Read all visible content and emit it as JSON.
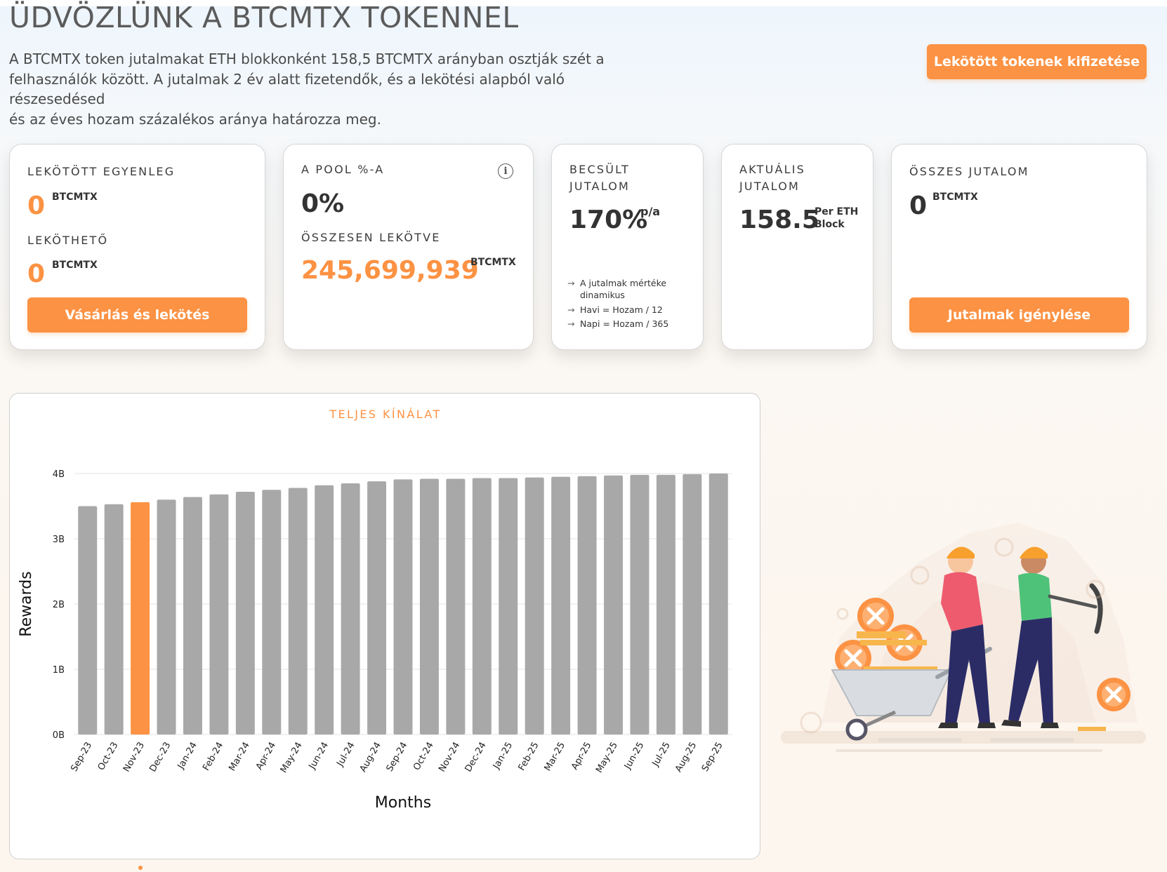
{
  "header": {
    "title": "ÜDVÖZLÜNK A BTCMTX TOKENNEL",
    "intro_line1": "A BTCMTX token jutalmakat ETH blokkonként 158,5 BTCMTX arányban osztják szét a",
    "intro_line2": "felhasználók között. A jutalmak 2 év alatt fizetendők, és a lekötési alapból való részesedésed",
    "intro_line3": "és az éves hozam százalékos aránya határozza meg.",
    "payout_button": "Lekötött tokenek kifizetése"
  },
  "cards": {
    "staked": {
      "label": "LEKÖTÖTT EGYENLEG",
      "value": "0",
      "unit": "BTCMTX",
      "stakeable_label": "LEKÖTHETŐ",
      "stakeable_value": "0",
      "stakeable_unit": "BTCMTX",
      "button": "Vásárlás és lekötés"
    },
    "pool": {
      "label": "A POOL %-A",
      "value": "0%",
      "info_icon": "i",
      "total_label": "ÖSSZESEN LEKÖTVE",
      "total_value": "245,699,939",
      "total_unit": "BTCMTX"
    },
    "estimated": {
      "label_line1": "BECSÜLT",
      "label_line2": "JUTALOM",
      "value": "170%",
      "unit": "p/a",
      "note1_line1": "A jutalmak mértéke",
      "note1_line2": "dinamikus",
      "note2": "Havi = Hozam / 12",
      "note3": "Napi = Hozam / 365",
      "arrow": "→"
    },
    "current": {
      "label_line1": "AKTUÁLIS",
      "label_line2": "JUTALOM",
      "value": "158.5",
      "unit_line1": "Per ETH",
      "unit_line2": "Block"
    },
    "total": {
      "label": "ÖSSZES JUTALOM",
      "value": "0",
      "unit": "BTCMTX",
      "button": "Jutalmak igénylése"
    }
  },
  "colors": {
    "accent": "#fc9243",
    "bar": "#a8a8a8",
    "text": "#333333"
  },
  "chart_data": {
    "type": "bar",
    "title": "TELJES KÍNÁLAT",
    "xlabel": "Months",
    "ylabel": "Rewards",
    "categories": [
      "Sep-23",
      "Oct-23",
      "Nov-23",
      "Dec-23",
      "Jan-24",
      "Feb-24",
      "Mar-24",
      "Apr-24",
      "May-24",
      "Jun-24",
      "Jul-24",
      "Aug-24",
      "Sep-24",
      "Oct-24",
      "Nov-24",
      "Dec-24",
      "Jan-25",
      "Feb-25",
      "Mar-25",
      "Apr-25",
      "May-25",
      "Jun-25",
      "Jul-25",
      "Aug-25",
      "Sep-25"
    ],
    "values": [
      3.5,
      3.53,
      3.56,
      3.6,
      3.64,
      3.68,
      3.72,
      3.75,
      3.78,
      3.82,
      3.85,
      3.88,
      3.91,
      3.92,
      3.92,
      3.93,
      3.93,
      3.94,
      3.95,
      3.96,
      3.97,
      3.98,
      3.98,
      3.99,
      4.0
    ],
    "highlight_index": 2,
    "ylim": [
      0,
      4
    ],
    "yticks": [
      "0B",
      "1B",
      "2B",
      "3B",
      "4B"
    ],
    "grid": true
  }
}
